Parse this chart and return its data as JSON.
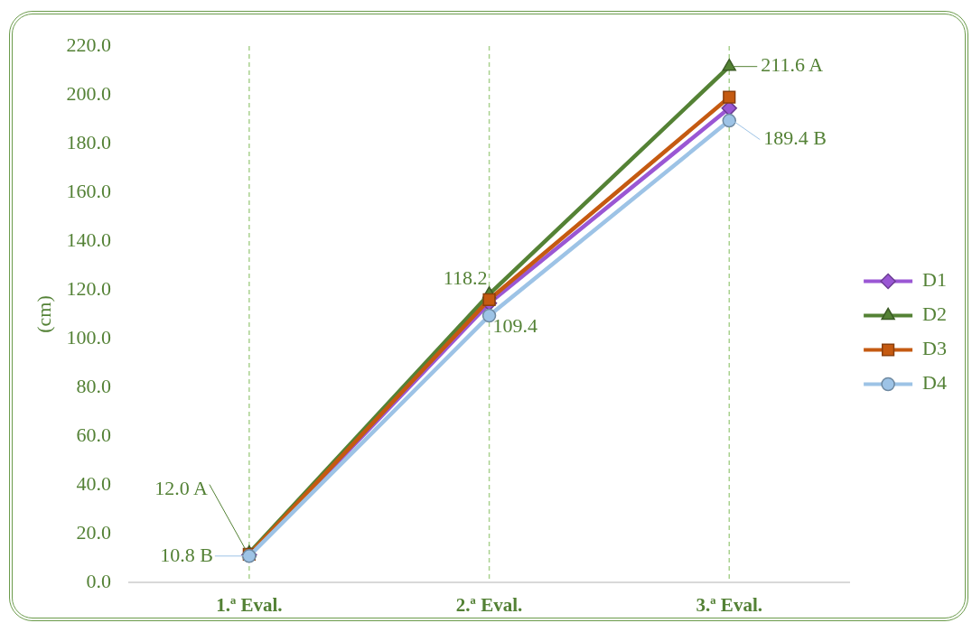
{
  "chart_data": {
    "type": "line",
    "ylabel": "(cm)",
    "categories": [
      "1.ª Eval.",
      "2.ª Eval.",
      "3.ª Eval."
    ],
    "series": [
      {
        "name": "D1",
        "color": "#9a57d4",
        "marker": "diamond",
        "values": [
          11.3,
          114.5,
          194.5
        ]
      },
      {
        "name": "D2",
        "color": "#548235",
        "marker": "triangle",
        "values": [
          12.0,
          118.2,
          211.6
        ],
        "value_labels": [
          "12.0 A",
          "118.2",
          "211.6 A"
        ]
      },
      {
        "name": "D3",
        "color": "#c55a11",
        "marker": "square",
        "values": [
          11.5,
          116.0,
          199.0
        ]
      },
      {
        "name": "D4",
        "color": "#9dc3e6",
        "marker": "circle",
        "values": [
          10.8,
          109.4,
          189.4
        ],
        "value_labels": [
          "10.8 B",
          "109.4",
          "189.4 B"
        ]
      }
    ],
    "ylim": [
      0,
      220
    ],
    "yticks": [
      {
        "value": 0,
        "label": "0.0"
      },
      {
        "value": 20,
        "label": "20.0"
      },
      {
        "value": 40,
        "label": "40.0"
      },
      {
        "value": 60,
        "label": "60.0"
      },
      {
        "value": 80,
        "label": "80.0"
      },
      {
        "value": 100,
        "label": "100.0"
      },
      {
        "value": 120,
        "label": "120.0"
      },
      {
        "value": 140,
        "label": "140.0"
      },
      {
        "value": 160,
        "label": "160.0"
      },
      {
        "value": 180,
        "label": "180.0"
      },
      {
        "value": 200,
        "label": "200.0"
      },
      {
        "value": 220,
        "label": "220.0"
      }
    ],
    "legend": "right",
    "line_style": "solid",
    "ref_lines": [
      {
        "axis": "x",
        "value": "1.ª Eval.",
        "color": "#a9d18e",
        "line_style": "dashed"
      },
      {
        "axis": "x",
        "value": "2.ª Eval.",
        "color": "#a9d18e",
        "line_style": "dashed"
      },
      {
        "axis": "x",
        "value": "3.ª Eval.",
        "color": "#a9d18e",
        "line_style": "dashed"
      }
    ]
  }
}
